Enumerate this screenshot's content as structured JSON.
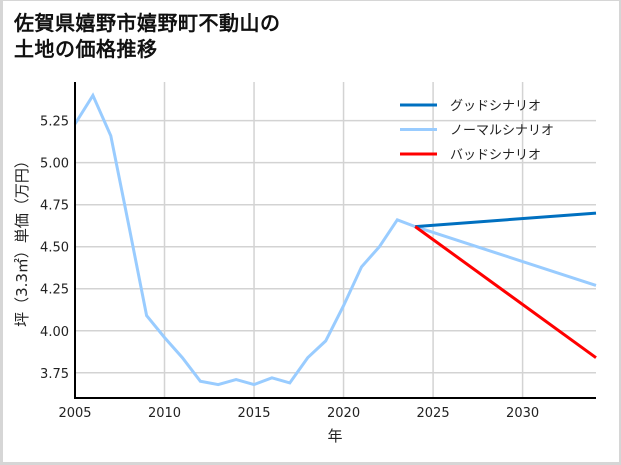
{
  "title": {
    "line1": "佐賀県嬉野市嬉野町不動山の",
    "line2": "土地の価格推移"
  },
  "colors": {
    "good": "#0070c0",
    "normal": "#99ccff",
    "bad": "#ff0000",
    "grid": "#d3d3d3",
    "axis": "#000000"
  },
  "chart_data": {
    "type": "line",
    "title": "佐賀県嬉野市嬉野町不動山の土地の価格推移",
    "xlabel": "年",
    "ylabel": "坪（3.3㎡）単価（万円）",
    "xlim": [
      2005,
      2034.1
    ],
    "ylim": [
      3.6,
      5.48
    ],
    "grid": true,
    "legend_position": "upper right",
    "x_ticks": [
      2005,
      2010,
      2015,
      2020,
      2025,
      2030
    ],
    "y_ticks": [
      3.75,
      4.0,
      4.25,
      4.5,
      4.75,
      5.0,
      5.25
    ],
    "x_tick_labels": [
      "2005",
      "2010",
      "2015",
      "2020",
      "2025",
      "2030"
    ],
    "y_tick_labels": [
      "3.75",
      "4.00",
      "4.25",
      "4.50",
      "4.75",
      "5.00",
      "5.25"
    ],
    "series": [
      {
        "name": "グッドシナリオ",
        "color": "#0070c0",
        "x": [
          2024,
          2034.1
        ],
        "values": [
          4.62,
          4.7
        ]
      },
      {
        "name": "ノーマルシナリオ",
        "color": "#99ccff",
        "x": [
          2005,
          2006,
          2007,
          2008,
          2009,
          2010,
          2011,
          2012,
          2013,
          2014,
          2015,
          2016,
          2017,
          2018,
          2019,
          2020,
          2021,
          2022,
          2023,
          2024,
          2034.1
        ],
        "values": [
          5.23,
          5.4,
          5.16,
          4.63,
          4.09,
          3.96,
          3.84,
          3.7,
          3.68,
          3.71,
          3.68,
          3.72,
          3.69,
          3.84,
          3.94,
          4.15,
          4.38,
          4.5,
          4.66,
          4.62,
          4.27
        ]
      },
      {
        "name": "バッドシナリオ",
        "color": "#ff0000",
        "x": [
          2024,
          2034.1
        ],
        "values": [
          4.62,
          3.84
        ]
      }
    ]
  },
  "legend": {
    "items": [
      {
        "label": "グッドシナリオ",
        "color": "#0070c0"
      },
      {
        "label": "ノーマルシナリオ",
        "color": "#99ccff"
      },
      {
        "label": "バッドシナリオ",
        "color": "#ff0000"
      }
    ]
  }
}
